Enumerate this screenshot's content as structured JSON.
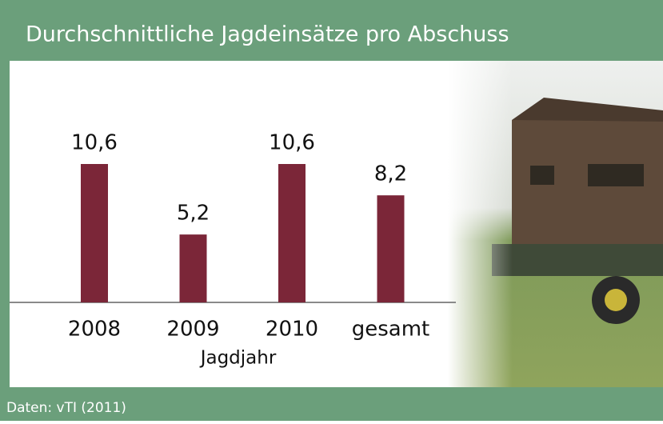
{
  "chart_data": {
    "type": "bar",
    "title": "Durchschnittliche Jagdeinsätze pro Abschuss",
    "x_label": "Jagdjahr",
    "source": "Daten: vTI (2011)",
    "categories": [
      "2008",
      "2009",
      "2010",
      "gesamt"
    ],
    "values": [
      10.6,
      5.2,
      10.6,
      8.2
    ],
    "value_labels": [
      "10,6",
      "5,2",
      "10,6",
      "8,2"
    ],
    "color": "#7b2638"
  }
}
